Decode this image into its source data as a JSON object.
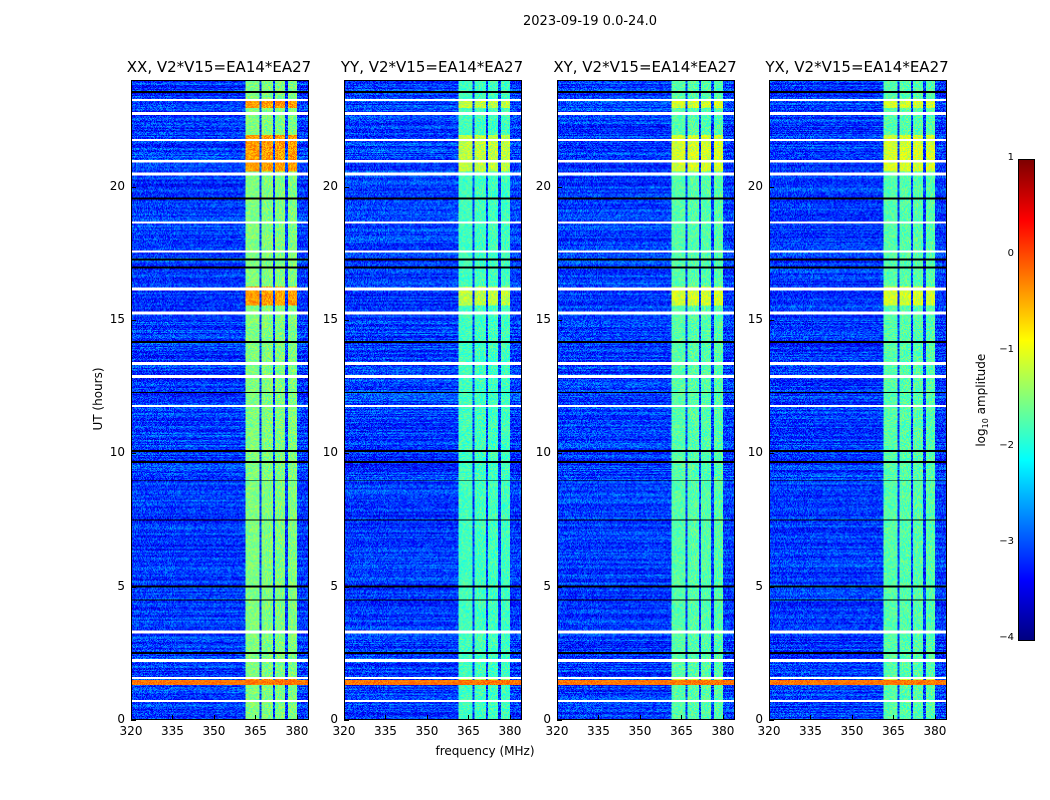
{
  "chart_data": {
    "type": "heatmap",
    "title": "2023-09-19 0.0-24.0",
    "xlabel": "frequency (MHz)",
    "ylabel": "UT (hours)",
    "xlim": [
      320,
      384
    ],
    "ylim": [
      0,
      24
    ],
    "xticks": [
      320,
      335,
      350,
      365,
      380
    ],
    "yticks": [
      0,
      5,
      10,
      15,
      20
    ],
    "panels": [
      {
        "title": "XX, V2*V15=EA14*EA27",
        "band_level": -1.5,
        "hot_level": -0.4
      },
      {
        "title": "YY, V2*V15=EA14*EA27",
        "band_level": -1.8,
        "hot_level": -1.2
      },
      {
        "title": "XY, V2*V15=EA14*EA27",
        "band_level": -1.7,
        "hot_level": -1.1
      },
      {
        "title": "YX, V2*V15=EA14*EA27",
        "band_level": -1.7,
        "hot_level": -1.1
      }
    ],
    "background_level": -3.1,
    "band_mhz": [
      361,
      380
    ],
    "band_gaps_mhz": [
      366.5,
      371.5,
      376
    ],
    "flagged_hours_white": [
      0.7,
      1.55,
      2.2,
      3.3,
      11.8,
      12.9,
      13.4,
      15.3,
      16.2,
      17.6,
      18.7,
      20.5,
      21.0,
      21.8,
      22.8,
      23.3
    ],
    "dropout_hours_black": [
      2.5,
      4.5,
      5.0,
      7.5,
      9.0,
      9.7,
      10.1,
      12.3,
      14.2,
      17.0,
      17.3,
      19.6,
      23.6
    ],
    "hot_hours": [
      [
        1.3,
        1.5
      ],
      [
        15.6,
        16.3
      ],
      [
        20.6,
        22.0
      ],
      [
        23.0,
        23.3
      ]
    ],
    "colorbar": {
      "label": "log10 amplitude",
      "label_main": "log",
      "label_sub": "10",
      "label_rest": " amplitude",
      "range": [
        -4,
        1
      ],
      "ticks": [
        "1",
        "0",
        "−1",
        "−2",
        "−3",
        "−4"
      ],
      "colormap": "jet"
    }
  }
}
